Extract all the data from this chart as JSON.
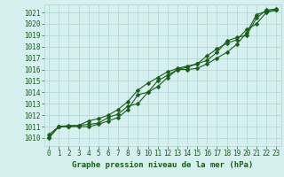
{
  "xlabel": "Graphe pression niveau de la mer (hPa)",
  "ylim": [
    1009.3,
    1021.7
  ],
  "xlim": [
    -0.5,
    23.5
  ],
  "yticks": [
    1010,
    1011,
    1012,
    1013,
    1014,
    1015,
    1016,
    1017,
    1018,
    1019,
    1020,
    1021
  ],
  "xticks": [
    0,
    1,
    2,
    3,
    4,
    5,
    6,
    7,
    8,
    9,
    10,
    11,
    12,
    13,
    14,
    15,
    16,
    17,
    18,
    19,
    20,
    21,
    22,
    23
  ],
  "bg_color": "#d6efef",
  "grid_color": "#b0d4d4",
  "line_color": "#1a5c1a",
  "line1": [
    1010.1,
    1011.0,
    1011.0,
    1011.1,
    1011.2,
    1011.3,
    1011.8,
    1012.1,
    1012.8,
    1013.0,
    1014.0,
    1015.0,
    1015.5,
    1016.0,
    1016.0,
    1016.1,
    1016.5,
    1017.0,
    1017.5,
    1018.2,
    1019.2,
    1020.8,
    1021.1,
    1021.2
  ],
  "line2": [
    1010.3,
    1011.0,
    1011.1,
    1011.1,
    1011.5,
    1011.7,
    1012.0,
    1012.5,
    1013.2,
    1014.2,
    1014.8,
    1015.3,
    1015.8,
    1016.1,
    1016.3,
    1016.5,
    1017.2,
    1017.8,
    1018.3,
    1018.6,
    1019.5,
    1020.0,
    1021.0,
    1021.2
  ],
  "line3": [
    1010.0,
    1011.0,
    1011.0,
    1011.0,
    1011.0,
    1011.2,
    1011.5,
    1011.8,
    1012.5,
    1013.8,
    1014.0,
    1014.5,
    1015.3,
    1016.0,
    1016.2,
    1016.5,
    1016.8,
    1017.5,
    1018.5,
    1018.8,
    1019.0,
    1020.5,
    1021.2,
    1021.3
  ],
  "marker": "D",
  "markersize": 2.5,
  "linewidth": 0.8,
  "fontsize_ticks": 5.5,
  "fontsize_xlabel": 6.5
}
